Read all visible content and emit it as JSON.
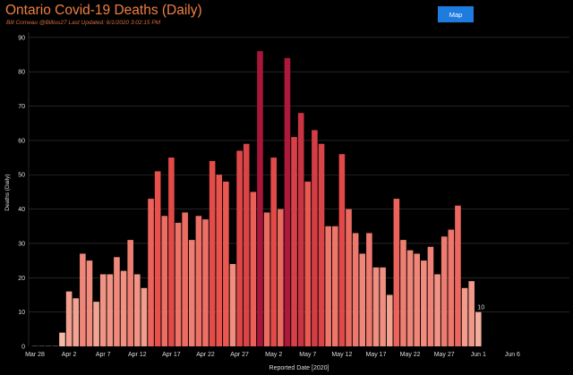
{
  "header": {
    "title": "Ontario Covid-19 Deaths (Daily)",
    "subtitle": "Bill Comeau @Billius27  Last Updated: 6/1/2020 3:02:15 PM",
    "map_button_label": "Map"
  },
  "colors": {
    "background": "#000000",
    "title": "#f08040",
    "button": "#1e7be0",
    "color_low": "#f7c2ae",
    "color_mid": "#e8504a",
    "color_high": "#a8163a"
  },
  "chart_data": {
    "type": "bar",
    "title": "Ontario Covid-19 Deaths (Daily)",
    "xlabel": "Reported Date [2020]",
    "ylabel": "Deaths (Daily)",
    "ylim": [
      0,
      91
    ],
    "yticks": [
      0,
      10,
      20,
      30,
      40,
      50,
      60,
      70,
      80,
      90
    ],
    "x_tick_labels": [
      "Mar 28",
      "Apr 2",
      "Apr 7",
      "Apr 12",
      "Apr 17",
      "Apr 22",
      "Apr 27",
      "May 2",
      "May 7",
      "May 12",
      "May 17",
      "May 22",
      "May 27",
      "Jun 1",
      "Jun 6"
    ],
    "x_tick_day_index": [
      0,
      5,
      10,
      15,
      20,
      25,
      30,
      35,
      40,
      45,
      50,
      55,
      60,
      65,
      70
    ],
    "start_date": "Mar 28",
    "values": [
      0,
      0,
      0,
      0,
      4,
      16,
      14,
      27,
      25,
      13,
      21,
      21,
      26,
      22,
      31,
      21,
      17,
      43,
      51,
      38,
      55,
      36,
      39,
      31,
      38,
      37,
      54,
      50,
      48,
      24,
      57,
      59,
      45,
      86,
      39,
      55,
      40,
      84,
      61,
      68,
      48,
      63,
      59,
      35,
      35,
      56,
      40,
      33,
      27,
      33,
      23,
      23,
      15,
      43,
      31,
      28,
      27,
      25,
      29,
      21,
      32,
      34,
      41,
      17,
      19,
      10
    ],
    "annotations": [
      {
        "day_index": 65,
        "text": "10"
      }
    ],
    "grid": true
  }
}
